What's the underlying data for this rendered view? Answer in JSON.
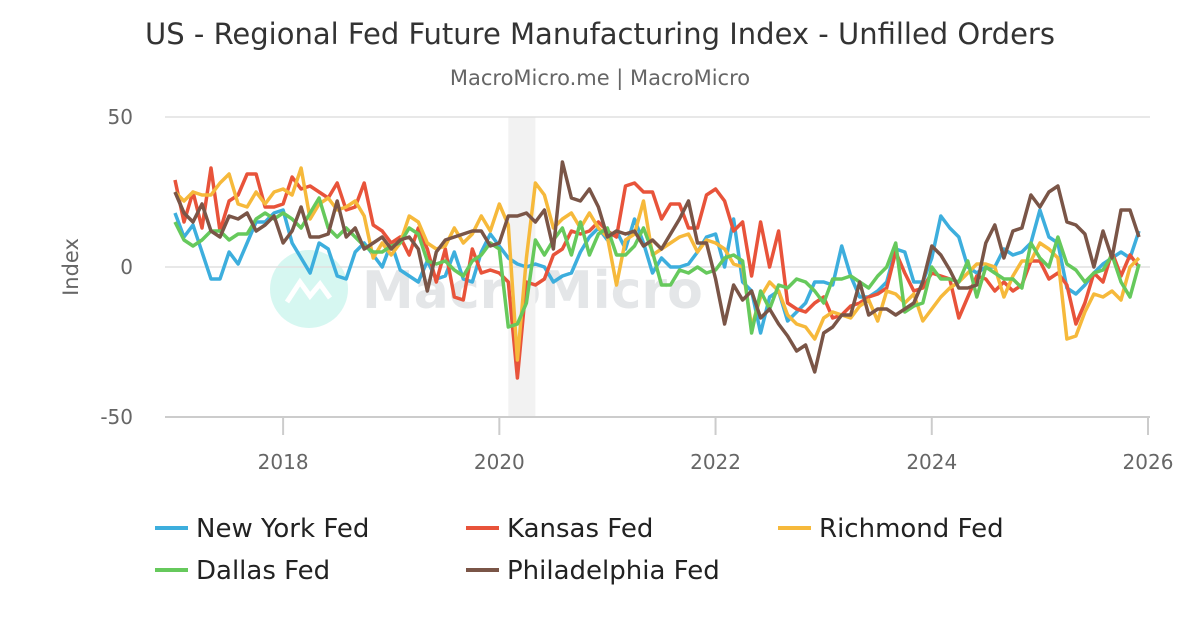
{
  "chart_data": {
    "type": "line",
    "title": "US - Regional Fed Future Manufacturing Index - Unfilled Orders",
    "subtitle": "MacroMicro.me | MacroMicro",
    "watermark": "MacroMicro",
    "ylabel": "Index",
    "ylim": [
      -50,
      50
    ],
    "yticks": [
      "50",
      "0",
      "-50"
    ],
    "ytick_values": [
      50,
      0,
      -50
    ],
    "xticks": [
      "2018",
      "2020",
      "2022",
      "2024",
      "2026"
    ],
    "xlim": [
      "2017-01",
      "2026-01"
    ],
    "x_start": "2017-01",
    "frequency": "monthly",
    "grid": "horizontal",
    "legend_position": "bottom",
    "shaded_period": [
      "2020-02",
      "2020-04"
    ],
    "series": [
      {
        "name": "New York Fed",
        "color": "#3DAEDD",
        "values": [
          18,
          10,
          14,
          5,
          -4,
          -4,
          5,
          1,
          8,
          15,
          15,
          18,
          19,
          8,
          3,
          -2,
          8,
          6,
          -3,
          -4,
          5,
          8,
          4,
          0,
          8,
          -1,
          -3,
          -5,
          2,
          -4,
          -3,
          5,
          -4,
          -5,
          5,
          11,
          7,
          3,
          1,
          0,
          1,
          0,
          -5,
          -3,
          -2,
          5,
          10,
          13,
          9,
          12,
          6,
          16,
          8,
          -2,
          3,
          0,
          0,
          1,
          5,
          10,
          11,
          0,
          16,
          -5,
          -8,
          -22,
          -10,
          -8,
          -18,
          -15,
          -12,
          -5,
          -5,
          -6,
          7,
          -3,
          -10,
          -10,
          -8,
          -5,
          6,
          5,
          -5,
          -5,
          3,
          17,
          13,
          10,
          0,
          -2,
          0,
          0,
          6,
          4,
          5,
          8,
          19,
          10,
          8,
          -7,
          -9,
          -6,
          -2,
          1,
          3,
          5,
          3,
          12
        ]
      },
      {
        "name": "Kansas Fed",
        "color": "#E8533A",
        "values": [
          29,
          15,
          25,
          13,
          33,
          12,
          22,
          24,
          31,
          31,
          20,
          20,
          21,
          30,
          26,
          27,
          25,
          23,
          28,
          19,
          20,
          28,
          14,
          12,
          8,
          10,
          4,
          13,
          6,
          -5,
          6,
          -10,
          -11,
          6,
          -2,
          -1,
          -2,
          -5,
          -37,
          -5,
          -6,
          -4,
          4,
          6,
          12,
          11,
          12,
          15,
          12,
          10,
          27,
          28,
          25,
          25,
          16,
          21,
          21,
          13,
          13,
          24,
          26,
          22,
          12,
          15,
          -3,
          15,
          0,
          12,
          -12,
          -14,
          -15,
          -12,
          -10,
          -17,
          -16,
          -13,
          -12,
          -10,
          -9,
          -7,
          5,
          -2,
          -8,
          -7,
          -2,
          -3,
          -4,
          -17,
          -10,
          -3,
          -4,
          -8,
          -5,
          -8,
          -6,
          2,
          2,
          -4,
          -2,
          -6,
          -19,
          -12,
          -2,
          -5,
          5,
          -3,
          4,
          0
        ]
      },
      {
        "name": "Richmond Fed",
        "color": "#F6B93B",
        "values": [
          25,
          22,
          25,
          24,
          24,
          28,
          31,
          21,
          20,
          25,
          21,
          25,
          26,
          24,
          33,
          16,
          21,
          23,
          19,
          20,
          22,
          17,
          3,
          8,
          4,
          8,
          17,
          15,
          8,
          6,
          7,
          13,
          8,
          11,
          17,
          12,
          21,
          14,
          -31,
          3,
          28,
          24,
          13,
          16,
          18,
          13,
          18,
          13,
          10,
          -6,
          9,
          11,
          22,
          4,
          6,
          8,
          10,
          11,
          5,
          9,
          8,
          6,
          1,
          0,
          -20,
          -10,
          -5,
          -8,
          -16,
          -19,
          -20,
          -24,
          -17,
          -15,
          -16,
          -17,
          -13,
          -11,
          -18,
          -8,
          -9,
          -12,
          -9,
          -18,
          -14,
          -10,
          -7,
          -5,
          -2,
          1,
          1,
          0,
          -10,
          -3,
          2,
          2,
          8,
          6,
          3,
          -24,
          -23,
          -15,
          -9,
          -10,
          -8,
          -11,
          0,
          3
        ]
      },
      {
        "name": "Dallas Fed",
        "color": "#66C95C",
        "values": [
          15,
          9,
          7,
          9,
          12,
          12,
          9,
          11,
          11,
          16,
          18,
          16,
          18,
          16,
          13,
          18,
          23,
          13,
          10,
          13,
          10,
          7,
          5,
          5,
          7,
          8,
          13,
          11,
          2,
          1,
          2,
          -1,
          -3,
          2,
          4,
          8,
          6,
          -20,
          -19,
          -12,
          9,
          4,
          9,
          13,
          4,
          15,
          4,
          11,
          13,
          4,
          4,
          7,
          13,
          5,
          -6,
          -6,
          -1,
          -2,
          0,
          -2,
          -1,
          3,
          4,
          2,
          -22,
          -8,
          -14,
          -6,
          -7,
          -4,
          -5,
          -8,
          -12,
          -4,
          -4,
          -3,
          -5,
          -7,
          -3,
          0,
          8,
          -15,
          -13,
          -12,
          0,
          -4,
          -4,
          -5,
          2,
          -10,
          0,
          -2,
          -4,
          -4,
          -7,
          8,
          3,
          0,
          10,
          1,
          -1,
          -5,
          -2,
          -1,
          4,
          -5,
          -10,
          1
        ]
      },
      {
        "name": "Philadelphia Fed",
        "color": "#7A5547",
        "values": [
          25,
          18,
          15,
          21,
          12,
          10,
          17,
          16,
          18,
          12,
          14,
          17,
          8,
          12,
          20,
          10,
          10,
          11,
          22,
          10,
          13,
          6,
          8,
          10,
          6,
          9,
          10,
          6,
          -8,
          5,
          9,
          10,
          11,
          12,
          12,
          7,
          8,
          17,
          17,
          18,
          15,
          19,
          6,
          35,
          23,
          22,
          26,
          20,
          10,
          12,
          11,
          12,
          7,
          9,
          6,
          11,
          16,
          22,
          8,
          8,
          -4,
          -19,
          -6,
          -11,
          -8,
          -17,
          -14,
          -19,
          -23,
          -28,
          -26,
          -35,
          -22,
          -20,
          -16,
          -16,
          -5,
          -16,
          -14,
          -14,
          -16,
          -14,
          -12,
          -5,
          7,
          4,
          -1,
          -7,
          -7,
          -6,
          8,
          14,
          3,
          12,
          13,
          24,
          20,
          25,
          27,
          15,
          14,
          11,
          0,
          12,
          3,
          19,
          19,
          10
        ]
      }
    ]
  }
}
